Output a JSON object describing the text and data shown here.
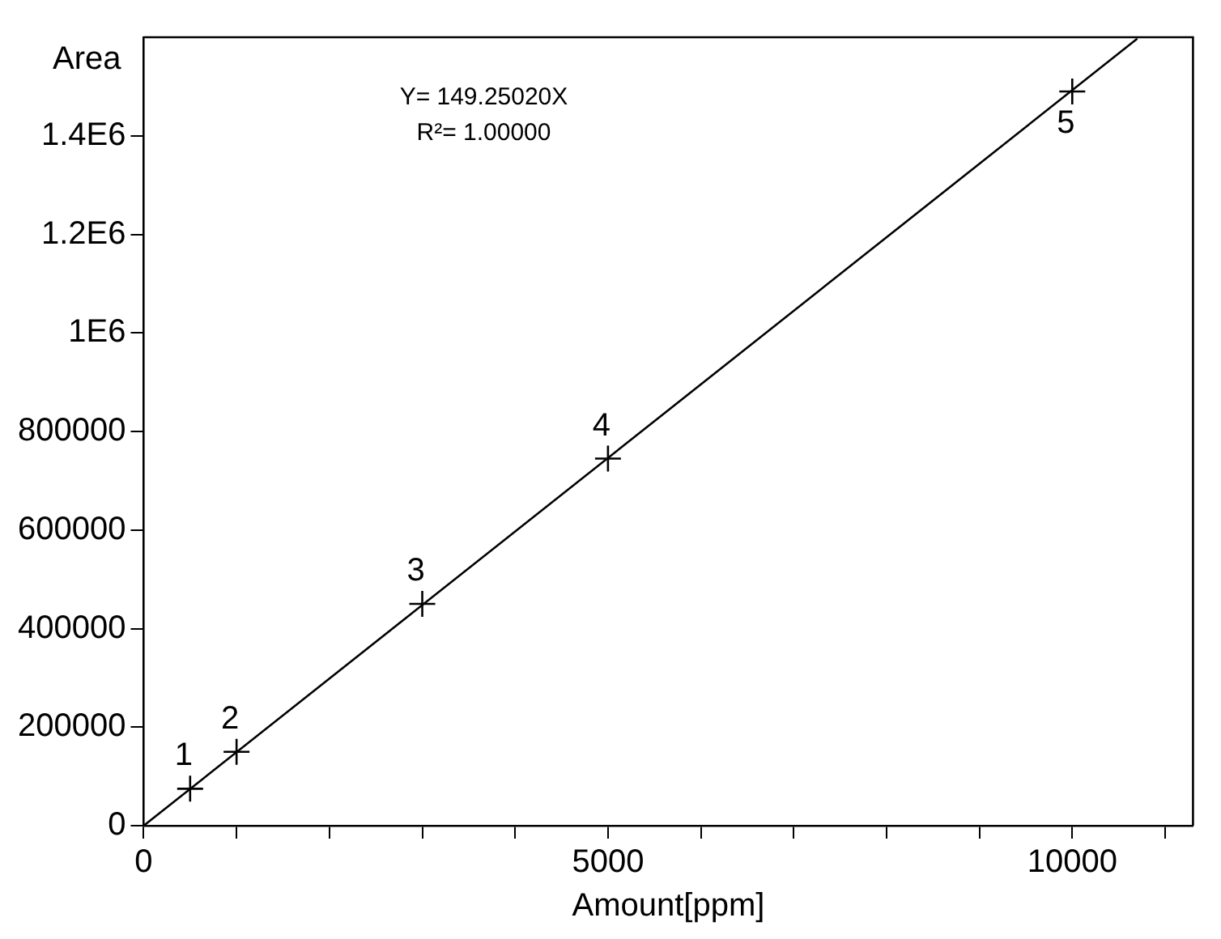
{
  "chart_data": {
    "type": "scatter",
    "xlabel": "Amount[ppm]",
    "ylabel": "Area",
    "annotations": [
      "Y= 149.25020X",
      "R²= 1.00000",
      {
        "text": "1",
        "x": 500,
        "y": 75000
      },
      {
        "text": "2",
        "x": 1000,
        "y": 150000
      },
      {
        "text": "3",
        "x": 3000,
        "y": 450000
      },
      {
        "text": "4",
        "x": 5000,
        "y": 745000
      },
      {
        "text": "5",
        "x": 10000,
        "y": 1490000
      }
    ],
    "series": [
      {
        "color": "#000000",
        "x": [
          500,
          1000,
          3000,
          5000,
          10000
        ],
        "values": [
          75000,
          150000,
          450000,
          745000,
          1490000
        ],
        "marker": "cross"
      },
      {
        "type": "line",
        "color": "#000000",
        "x": [
          0,
          10700
        ],
        "values": [
          0,
          1597000
        ],
        "marker": "none"
      }
    ],
    "xlim": [
      0,
      11300
    ],
    "xticks": [
      0,
      {
        "value": 1000,
        "label": null
      },
      {
        "value": 2000,
        "label": null
      },
      {
        "value": 3000,
        "label": null
      },
      {
        "value": 4000,
        "label": null
      },
      5000,
      {
        "value": 6000,
        "label": null
      },
      {
        "value": 7000,
        "label": null
      },
      {
        "value": 8000,
        "label": null
      },
      {
        "value": 9000,
        "label": null
      },
      10000,
      {
        "value": 11000,
        "label": null
      }
    ],
    "ylim": [
      0,
      1600000
    ],
    "yticks": [
      0,
      200000,
      400000,
      600000,
      800000,
      {
        "value": 1000000,
        "label": "1E6"
      },
      {
        "value": 1200000,
        "label": "1.2E6"
      },
      {
        "value": 1400000,
        "label": "1.4E6"
      }
    ],
    "grid": false,
    "legend": false
  }
}
